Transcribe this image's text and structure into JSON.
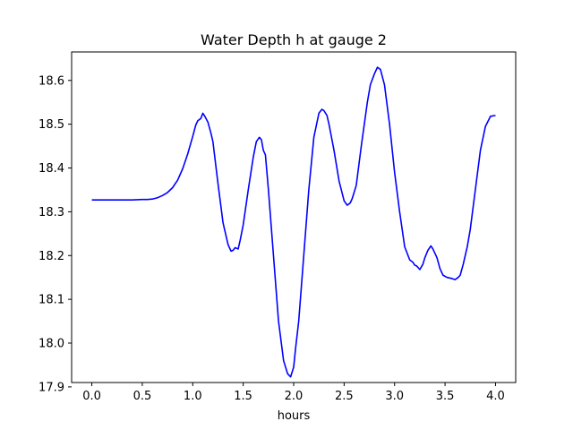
{
  "chart_data": {
    "type": "line",
    "title": "Water Depth h at gauge 2",
    "xlabel": "hours",
    "ylabel": "",
    "xlim": [
      -0.2,
      4.2
    ],
    "ylim": [
      17.91,
      18.665
    ],
    "xticks": [
      0.0,
      0.5,
      1.0,
      1.5,
      2.0,
      2.5,
      3.0,
      3.5,
      4.0
    ],
    "xtick_labels": [
      "0.0",
      "0.5",
      "1.0",
      "1.5",
      "2.0",
      "2.5",
      "3.0",
      "3.5",
      "4.0"
    ],
    "yticks": [
      17.9,
      18.0,
      18.1,
      18.2,
      18.3,
      18.4,
      18.5,
      18.6
    ],
    "ytick_labels": [
      "17.9",
      "18.0",
      "18.1",
      "18.2",
      "18.3",
      "18.4",
      "18.5",
      "18.6"
    ],
    "grid": false,
    "legend": "none",
    "series": [
      {
        "color": "#0000ff",
        "x": [
          0.0,
          0.2,
          0.4,
          0.5,
          0.55,
          0.6,
          0.65,
          0.7,
          0.75,
          0.8,
          0.85,
          0.9,
          0.95,
          1.0,
          1.03,
          1.05,
          1.08,
          1.1,
          1.12,
          1.15,
          1.18,
          1.2,
          1.25,
          1.3,
          1.35,
          1.38,
          1.4,
          1.42,
          1.45,
          1.47,
          1.5,
          1.55,
          1.6,
          1.63,
          1.66,
          1.68,
          1.7,
          1.72,
          1.75,
          1.8,
          1.85,
          1.9,
          1.94,
          1.97,
          2.0,
          2.02,
          2.05,
          2.1,
          2.15,
          2.2,
          2.25,
          2.28,
          2.3,
          2.33,
          2.35,
          2.4,
          2.45,
          2.5,
          2.53,
          2.56,
          2.58,
          2.62,
          2.67,
          2.7,
          2.73,
          2.76,
          2.8,
          2.83,
          2.86,
          2.9,
          2.95,
          3.0,
          3.05,
          3.1,
          3.15,
          3.18,
          3.2,
          3.22,
          3.25,
          3.28,
          3.3,
          3.33,
          3.36,
          3.38,
          3.4,
          3.42,
          3.45,
          3.48,
          3.52,
          3.56,
          3.6,
          3.63,
          3.65,
          3.68,
          3.72,
          3.75,
          3.8,
          3.85,
          3.9,
          3.95,
          4.0
        ],
        "y": [
          18.327,
          18.327,
          18.327,
          18.328,
          18.328,
          18.329,
          18.332,
          18.337,
          18.344,
          18.355,
          18.372,
          18.398,
          18.432,
          18.472,
          18.498,
          18.508,
          18.513,
          18.525,
          18.518,
          18.505,
          18.48,
          18.46,
          18.365,
          18.275,
          18.225,
          18.21,
          18.212,
          18.218,
          18.215,
          18.235,
          18.27,
          18.35,
          18.425,
          18.46,
          18.47,
          18.465,
          18.44,
          18.43,
          18.35,
          18.2,
          18.05,
          17.96,
          17.93,
          17.923,
          17.945,
          17.99,
          18.05,
          18.2,
          18.35,
          18.47,
          18.525,
          18.534,
          18.531,
          18.52,
          18.5,
          18.44,
          18.37,
          18.325,
          18.315,
          18.32,
          18.33,
          18.36,
          18.45,
          18.5,
          18.55,
          18.59,
          18.615,
          18.63,
          18.625,
          18.59,
          18.5,
          18.39,
          18.3,
          18.22,
          18.19,
          18.185,
          18.178,
          18.176,
          18.168,
          18.18,
          18.195,
          18.212,
          18.222,
          18.215,
          18.205,
          18.195,
          18.17,
          18.155,
          18.15,
          18.148,
          18.145,
          18.15,
          18.155,
          18.18,
          18.22,
          18.26,
          18.35,
          18.44,
          18.495,
          18.518,
          18.52
        ]
      }
    ]
  }
}
